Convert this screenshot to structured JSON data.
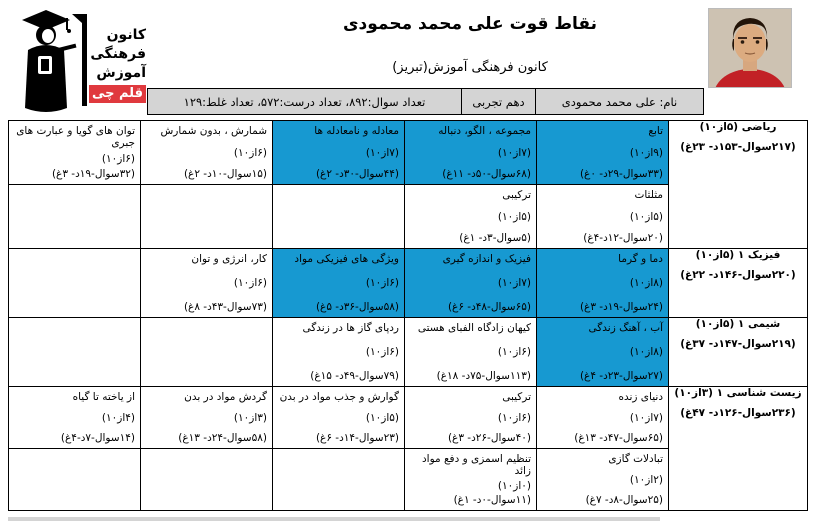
{
  "page": {
    "title": "نقاط قوت علی محمد محمودی",
    "subtitle": "کانون فرهنگی آموزش(تبریز)"
  },
  "logo": {
    "line1": "کانون",
    "line2": "فرهنگی",
    "line3": "آموزش",
    "badge": "قلم چی"
  },
  "icons": {
    "logo_figure": "graduate-silhouette-icon",
    "student_photo": "student-portrait-photo"
  },
  "info_bar": {
    "totals": "تعداد سوال:۸۹۲، تعداد درست:۵۷۲، تعداد غلط:۱۲۹",
    "grade": "دهم تجربی",
    "name": "نام: علی محمد محمودی"
  },
  "colors": {
    "highlight_cyan": "#1799d1",
    "cell_gray": "#d4d4d4",
    "badge_red": "#e0393e",
    "border": "#000000"
  },
  "table": {
    "sections": [
      {
        "subject": "ریاضی (۵از۱۰)",
        "subject_stats": "(۲۱۷سوال-۱۵۳د- ۲۳غ)",
        "rows": [
          [
            {
              "topic": "تابع",
              "score": "(۹از۱۰)",
              "stats": "(۳۳سوال-۲۹د- ۰غ)",
              "highlight": true
            },
            {
              "topic": "مجموعه ، الگو، دنباله",
              "score": "(۷از۱۰)",
              "stats": "(۶۸سوال-۵۰د- ۱۱غ)",
              "highlight": true
            },
            {
              "topic": "معادله و نامعادله ها",
              "score": "(۷از۱۰)",
              "stats": "(۴۴سوال-۳۰د- ۲غ)",
              "highlight": true
            },
            {
              "topic": "شمارش ، بدون شمارش",
              "score": "(۶از۱۰)",
              "stats": "(۱۵سوال-۱۰د- ۲غ)",
              "highlight": false
            },
            {
              "topic": "توان های گویا و عبارت های جبری",
              "score": "(۶از۱۰)",
              "stats": "(۳۲سوال-۱۹د- ۳غ)",
              "highlight": false
            }
          ],
          [
            {
              "topic": "مثلثات",
              "score": "(۵از۱۰)",
              "stats": "(۲۰سوال-۱۲د-۴غ)",
              "highlight": false
            },
            {
              "topic": "ترکیبی",
              "score": "(۵از۱۰)",
              "stats": "(۵سوال-۳د- ۱غ)",
              "highlight": false
            },
            null,
            null,
            null
          ]
        ]
      },
      {
        "subject": "فیزیک ۱ (۵از۱۰)",
        "subject_stats": "(۲۲۰سوال-۱۴۶د- ۲۲غ)",
        "rows": [
          [
            {
              "topic": "دما و گرما",
              "score": "(۸از۱۰)",
              "stats": "(۲۴سوال-۱۹د- ۳غ)",
              "highlight": true
            },
            {
              "topic": "فیزیک و اندازه گیری",
              "score": "(۷از۱۰)",
              "stats": "(۶۵سوال-۴۸د- ۶غ)",
              "highlight": true
            },
            {
              "topic": "ویژگی های فیزیکی مواد",
              "score": "(۶از۱۰)",
              "stats": "(۵۸سوال-۳۶د- ۵غ)",
              "highlight": true
            },
            {
              "topic": "کار، انرژی و توان",
              "score": "(۶از۱۰)",
              "stats": "(۷۳سوال-۴۳د- ۸غ)",
              "highlight": false
            },
            null
          ]
        ]
      },
      {
        "subject": "شیمی ۱ (۵از۱۰)",
        "subject_stats": "(۲۱۹سوال-۱۴۷د- ۳۷غ)",
        "rows": [
          [
            {
              "topic": "آب ، آهنگ زندگی",
              "score": "(۸از۱۰)",
              "stats": "(۲۷سوال-۲۳د- ۴غ)",
              "highlight": true
            },
            {
              "topic": "کیهان زادگاه الفبای هستی",
              "score": "(۶از۱۰)",
              "stats": "(۱۱۳سوال-۷۵د- ۱۸غ)",
              "highlight": false
            },
            {
              "topic": "ردپای گاز ها در زندگی",
              "score": "(۶از۱۰)",
              "stats": "(۷۹سوال-۴۹د- ۱۵غ)",
              "highlight": false
            },
            null,
            null
          ]
        ]
      },
      {
        "subject": "زیست شناسی ۱ (۳از۱۰)",
        "subject_stats": "(۲۳۶سوال-۱۲۶د- ۴۷غ)",
        "rows": [
          [
            {
              "topic": "دنیای زنده",
              "score": "(۷از۱۰)",
              "stats": "(۶۵سوال-۴۷د- ۱۳غ)",
              "highlight": false
            },
            {
              "topic": "ترکیبی",
              "score": "(۶از۱۰)",
              "stats": "(۴۰سوال-۲۶د- ۳غ)",
              "highlight": false
            },
            {
              "topic": "گوارش و جذب مواد در بدن",
              "score": "(۵از۱۰)",
              "stats": "(۲۳سوال-۱۴د- ۶غ)",
              "highlight": false
            },
            {
              "topic": "گردش مواد در بدن",
              "score": "(۳از۱۰)",
              "stats": "(۵۸سوال-۲۴د- ۱۳غ)",
              "highlight": false
            },
            {
              "topic": "از یاخته تا گیاه",
              "score": "(۴از۱۰)",
              "stats": "(۱۴سوال-۷د-۴غ)",
              "highlight": false
            }
          ],
          [
            {
              "topic": "تبادلات گازی",
              "score": "(۲از۱۰)",
              "stats": "(۲۵سوال-۸د- ۷غ)",
              "highlight": false
            },
            {
              "topic": "تنظیم اسمزی و دفع مواد زائد",
              "score": "(۰از۱۰)",
              "stats": "(۱۱سوال-۰د- ۱غ)",
              "highlight": false
            },
            null,
            null,
            null
          ]
        ]
      }
    ]
  }
}
